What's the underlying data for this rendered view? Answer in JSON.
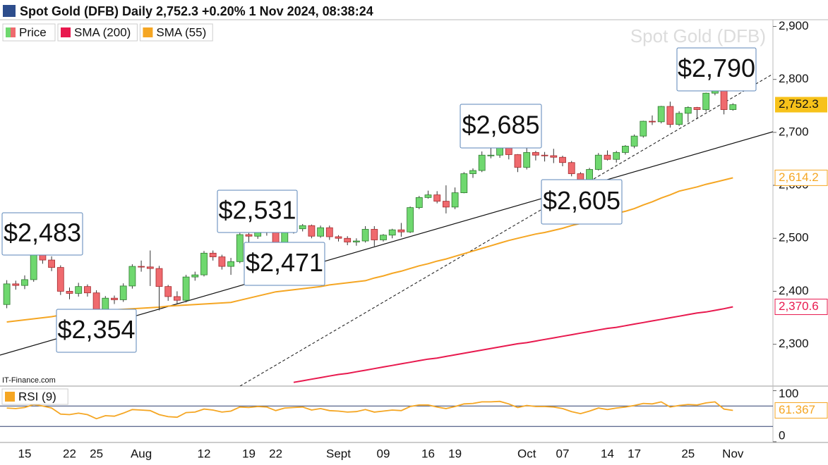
{
  "header": {
    "title": "Spot Gold (DFB) Daily 2,752.3 +0.20% 1 Nov 2024, 08:38:24"
  },
  "watermark": "Spot Gold (DFB)",
  "source": "IT-Finance.com",
  "chart_data": [
    {
      "type": "candlestick",
      "name": "Price",
      "up_color": "#6fd86f",
      "down_color": "#ef6a6e",
      "categories": [
        null,
        null,
        "15",
        null,
        null,
        null,
        null,
        "22",
        null,
        null,
        "25",
        null,
        null,
        null,
        null,
        "Aug",
        null,
        null,
        null,
        null,
        null,
        null,
        "12",
        null,
        null,
        null,
        null,
        "19",
        null,
        null,
        "22",
        null,
        null,
        null,
        null,
        null,
        null,
        "Sept",
        null,
        null,
        null,
        null,
        "09",
        null,
        null,
        null,
        null,
        "16",
        null,
        null,
        "19",
        null,
        null,
        null,
        null,
        null,
        null,
        null,
        "Oct",
        null,
        null,
        null,
        "07",
        null,
        null,
        null,
        null,
        "14",
        null,
        null,
        "17",
        null,
        null,
        null,
        null,
        null,
        "25",
        null,
        null,
        null,
        null,
        "Nov"
      ],
      "open": [
        2375,
        2414,
        2411,
        2422,
        2469,
        2459,
        2445,
        2400,
        2396,
        2409,
        2397,
        2364,
        2387,
        2384,
        2410,
        2447,
        2446,
        2443,
        2409,
        2390,
        2383,
        2427,
        2431,
        2472,
        2465,
        2447,
        2456,
        2507,
        2504,
        2514,
        2512,
        2485,
        2512,
        2518,
        2524,
        2504,
        2520,
        2503,
        2500,
        2493,
        2495,
        2517,
        2497,
        2506,
        2516,
        2512,
        2558,
        2577,
        2582,
        2570,
        2559,
        2586,
        2622,
        2628,
        2657,
        2657,
        2672,
        2658,
        2634,
        2662,
        2657,
        2656,
        2653,
        2643,
        2622,
        2609,
        2630,
        2657,
        2649,
        2662,
        2674,
        2693,
        2721,
        2720,
        2749,
        2715,
        2736,
        2747,
        2743,
        2774,
        2788,
        2743
      ],
      "high": [
        2421,
        2420,
        2430,
        2474,
        2483,
        2466,
        2449,
        2407,
        2416,
        2413,
        2402,
        2391,
        2392,
        2415,
        2451,
        2458,
        2477,
        2448,
        2412,
        2400,
        2431,
        2437,
        2476,
        2477,
        2469,
        2463,
        2510,
        2510,
        2531,
        2520,
        2516,
        2516,
        2521,
        2527,
        2526,
        2524,
        2524,
        2506,
        2504,
        2500,
        2523,
        2523,
        2508,
        2518,
        2529,
        2560,
        2580,
        2590,
        2589,
        2600,
        2596,
        2625,
        2632,
        2664,
        2670,
        2685,
        2674,
        2659,
        2670,
        2665,
        2663,
        2669,
        2656,
        2646,
        2625,
        2633,
        2661,
        2666,
        2665,
        2676,
        2696,
        2722,
        2732,
        2750,
        2758,
        2740,
        2749,
        2748,
        2775,
        2789,
        2790,
        2755
      ],
      "low": [
        2368,
        2403,
        2404,
        2418,
        2452,
        2438,
        2393,
        2385,
        2390,
        2390,
        2354,
        2358,
        2376,
        2380,
        2405,
        2437,
        2410,
        2364,
        2382,
        2377,
        2379,
        2420,
        2428,
        2458,
        2441,
        2431,
        2453,
        2491,
        2499,
        2505,
        2471,
        2483,
        2509,
        2513,
        2500,
        2501,
        2497,
        2494,
        2487,
        2486,
        2492,
        2485,
        2494,
        2500,
        2503,
        2510,
        2555,
        2575,
        2566,
        2547,
        2555,
        2585,
        2614,
        2625,
        2651,
        2652,
        2649,
        2625,
        2630,
        2647,
        2645,
        2642,
        2636,
        2617,
        2606,
        2605,
        2628,
        2647,
        2643,
        2658,
        2670,
        2690,
        2714,
        2717,
        2709,
        2712,
        2719,
        2725,
        2739,
        2770,
        2734,
        2741
      ],
      "close": [
        2414,
        2411,
        2422,
        2469,
        2459,
        2445,
        2400,
        2396,
        2409,
        2397,
        2364,
        2387,
        2384,
        2410,
        2447,
        2446,
        2443,
        2409,
        2390,
        2383,
        2427,
        2431,
        2472,
        2465,
        2447,
        2456,
        2507,
        2504,
        2514,
        2512,
        2485,
        2512,
        2518,
        2524,
        2504,
        2520,
        2503,
        2500,
        2493,
        2495,
        2517,
        2497,
        2506,
        2516,
        2512,
        2558,
        2577,
        2582,
        2570,
        2559,
        2586,
        2622,
        2628,
        2657,
        2657,
        2672,
        2658,
        2634,
        2662,
        2657,
        2656,
        2653,
        2643,
        2622,
        2609,
        2630,
        2657,
        2649,
        2662,
        2674,
        2693,
        2721,
        2720,
        2749,
        2715,
        2736,
        2747,
        2743,
        2774,
        2788,
        2743,
        2752.3
      ],
      "close_label": "2,752.3",
      "series": [
        {
          "name": "SMA (200)",
          "color": "#e8194e",
          "last_label": "2,370.6",
          "values": [
            null,
            null,
            null,
            null,
            null,
            null,
            null,
            null,
            null,
            null,
            null,
            null,
            null,
            null,
            null,
            null,
            null,
            null,
            null,
            null,
            null,
            null,
            null,
            null,
            null,
            null,
            null,
            null,
            null,
            null,
            null,
            null,
            2228,
            2231,
            2234,
            2237,
            2240,
            2243,
            2245,
            2248,
            2251,
            2254,
            2257,
            2260,
            2263,
            2266,
            2269,
            2272,
            2274,
            2277,
            2280,
            2283,
            2286,
            2289,
            2292,
            2295,
            2298,
            2301,
            2303,
            2306,
            2309,
            2312,
            2315,
            2318,
            2321,
            2324,
            2327,
            2330,
            2332,
            2335,
            2338,
            2341,
            2344,
            2347,
            2350,
            2353,
            2356,
            2359,
            2361,
            2364,
            2367,
            2370.6
          ]
        },
        {
          "name": "SMA (55)",
          "color": "#f5a623",
          "last_label": "2,614.2",
          "values": [
            2342,
            2344,
            2346,
            2348,
            2350,
            2352,
            2355,
            2357,
            2359,
            2361,
            2363,
            2364,
            2365,
            2366,
            2367,
            2368,
            2369,
            2370,
            2372,
            2373,
            2374,
            2375,
            2376,
            2377,
            2378,
            2379,
            2383,
            2387,
            2391,
            2395,
            2399,
            2401,
            2403,
            2405,
            2407,
            2409,
            2412,
            2414,
            2416,
            2418,
            2420,
            2425,
            2429,
            2434,
            2438,
            2443,
            2448,
            2452,
            2457,
            2461,
            2466,
            2471,
            2476,
            2481,
            2486,
            2491,
            2496,
            2500,
            2504,
            2508,
            2511,
            2515,
            2519,
            2524,
            2528,
            2533,
            2538,
            2542,
            2547,
            2551,
            2556,
            2563,
            2569,
            2576,
            2582,
            2589,
            2593,
            2597,
            2602,
            2606,
            2610,
            2614.2
          ]
        }
      ],
      "annotations": [
        "$2,483",
        "$2,354",
        "$2,531",
        "$2,471",
        "$2,685",
        "$2,605",
        "$2,790"
      ],
      "ylim": [
        2225,
        2910
      ],
      "yticks": [
        {
          "value": 2300,
          "label": "2,300"
        },
        {
          "value": 2400,
          "label": "2,400"
        },
        {
          "value": 2500,
          "label": "2,500"
        },
        {
          "value": 2600,
          "label": "2,600"
        },
        {
          "value": 2700,
          "label": "2,700"
        },
        {
          "value": 2800,
          "label": "2,800"
        },
        {
          "value": 2900,
          "label": "2,900"
        }
      ]
    },
    {
      "type": "line",
      "series": [
        {
          "name": "RSI (9)",
          "color": "#f5a623",
          "values": [
            66,
            65,
            67,
            73,
            70,
            66,
            54,
            53,
            56,
            53,
            45,
            51,
            50,
            56,
            63,
            62,
            61,
            53,
            49,
            48,
            57,
            58,
            64,
            62,
            58,
            60,
            68,
            67,
            69,
            68,
            61,
            66,
            67,
            68,
            62,
            65,
            61,
            60,
            58,
            59,
            63,
            58,
            60,
            62,
            61,
            69,
            72,
            72,
            68,
            65,
            69,
            74,
            75,
            78,
            78,
            79,
            74,
            67,
            71,
            69,
            69,
            68,
            65,
            59,
            55,
            60,
            66,
            63,
            66,
            68,
            71,
            75,
            74,
            78,
            68,
            71,
            73,
            72,
            76,
            78,
            64,
            61.367
          ]
        }
      ],
      "levels": [
        30,
        70
      ],
      "ylim": [
        -1.5,
        109
      ],
      "yticks": [
        0,
        100
      ]
    }
  ]
}
